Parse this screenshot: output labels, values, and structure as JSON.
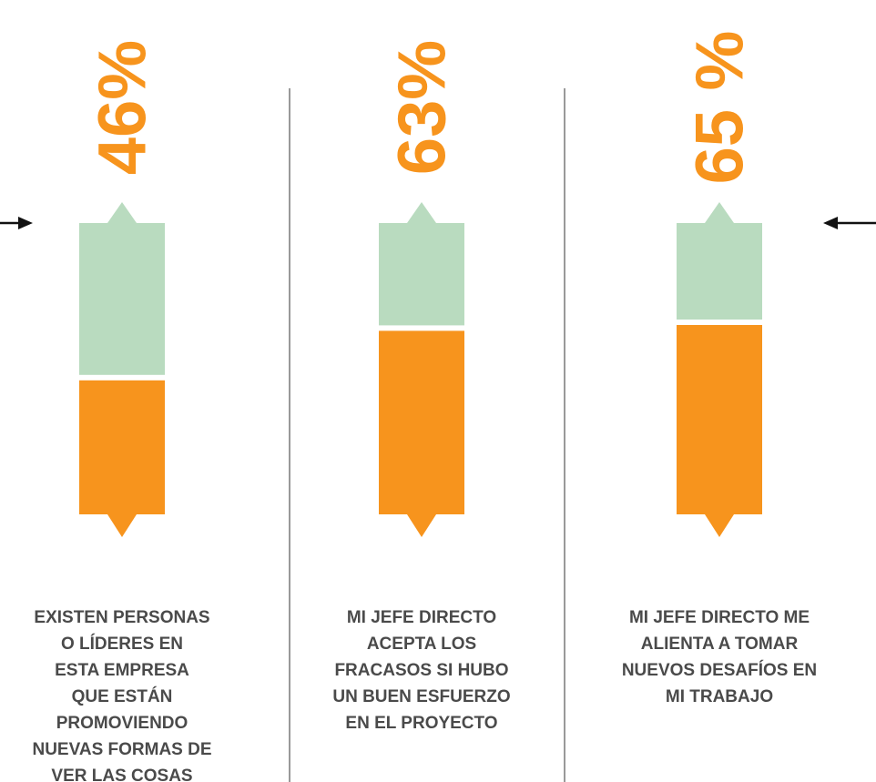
{
  "chart_data": {
    "type": "bar",
    "categories": [
      [
        "EXISTEN PERSONAS",
        "O LÍDERES EN",
        "ESTA EMPRESA",
        "QUE ESTÁN",
        "PROMOVIENDO",
        "NUEVAS FORMAS DE",
        "VER LAS COSAS"
      ],
      [
        "MI JEFE DIRECTO",
        "ACEPTA LOS",
        "FRACASOS SI HUBO",
        "UN BUEN ESFUERZO",
        "EN EL PROYECTO"
      ],
      [
        "MI JEFE DIRECTO ME",
        "ALIENTA A TOMAR",
        "NUEVOS DESAFÍOS EN",
        "MI TRABAJO"
      ]
    ],
    "values": [
      46,
      63,
      65
    ],
    "value_labels": [
      "46%",
      "63%",
      "65 %"
    ],
    "ylim": [
      0,
      100
    ],
    "color": "#f7941d",
    "remainder_color": "#b9dbbf"
  }
}
